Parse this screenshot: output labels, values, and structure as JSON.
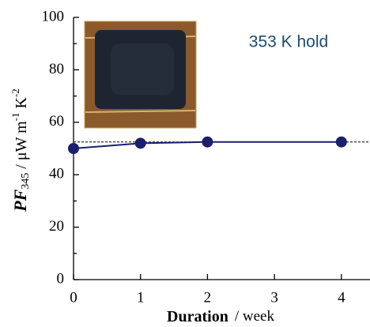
{
  "chart_data": {
    "type": "line",
    "xlabel": [
      "Duration",
      "/ week"
    ],
    "ylabel": [
      "PF",
      "345",
      " / μW m",
      "-1",
      " K",
      "-2"
    ],
    "annotation": "353 K hold",
    "x": [
      0,
      1,
      2,
      4
    ],
    "series": [
      {
        "color": "#1c1f6b",
        "values": [
          50,
          52,
          52.5,
          52.5
        ]
      }
    ],
    "reference_line": 52.5,
    "xlim": [
      0,
      4.4
    ],
    "xticks": [
      0,
      1,
      2,
      3,
      4
    ],
    "ylim": [
      0,
      100
    ],
    "yticks": [
      0,
      20,
      40,
      60,
      80,
      100
    ],
    "yminor_ticks": [
      10,
      30,
      50,
      70,
      90
    ]
  }
}
